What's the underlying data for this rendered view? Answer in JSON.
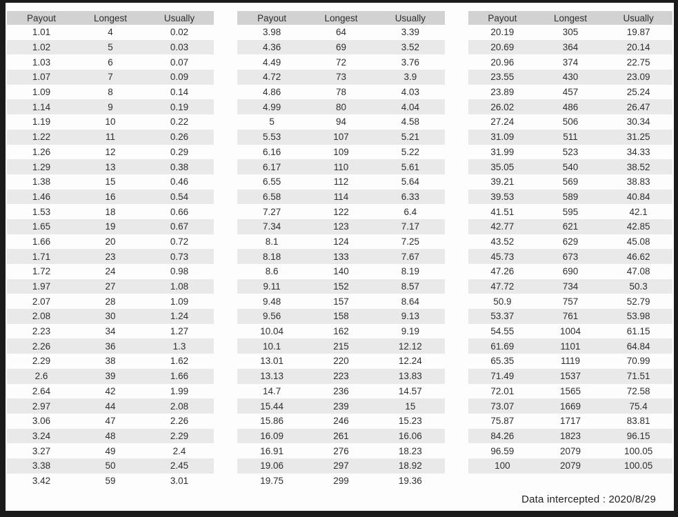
{
  "columns": [
    "Payout",
    "Longest",
    "Usually"
  ],
  "tables": [
    {
      "rows": [
        [
          "1.01",
          "4",
          "0.02"
        ],
        [
          "1.02",
          "5",
          "0.03"
        ],
        [
          "1.03",
          "6",
          "0.07"
        ],
        [
          "1.07",
          "7",
          "0.09"
        ],
        [
          "1.09",
          "8",
          "0.14"
        ],
        [
          "1.14",
          "9",
          "0.19"
        ],
        [
          "1.19",
          "10",
          "0.22"
        ],
        [
          "1.22",
          "11",
          "0.26"
        ],
        [
          "1.26",
          "12",
          "0.29"
        ],
        [
          "1.29",
          "13",
          "0.38"
        ],
        [
          "1.38",
          "15",
          "0.46"
        ],
        [
          "1.46",
          "16",
          "0.54"
        ],
        [
          "1.53",
          "18",
          "0.66"
        ],
        [
          "1.65",
          "19",
          "0.67"
        ],
        [
          "1.66",
          "20",
          "0.72"
        ],
        [
          "1.71",
          "23",
          "0.73"
        ],
        [
          "1.72",
          "24",
          "0.98"
        ],
        [
          "1.97",
          "27",
          "1.08"
        ],
        [
          "2.07",
          "28",
          "1.09"
        ],
        [
          "2.08",
          "30",
          "1.24"
        ],
        [
          "2.23",
          "34",
          "1.27"
        ],
        [
          "2.26",
          "36",
          "1.3"
        ],
        [
          "2.29",
          "38",
          "1.62"
        ],
        [
          "2.6",
          "39",
          "1.66"
        ],
        [
          "2.64",
          "42",
          "1.99"
        ],
        [
          "2.97",
          "44",
          "2.08"
        ],
        [
          "3.06",
          "47",
          "2.26"
        ],
        [
          "3.24",
          "48",
          "2.29"
        ],
        [
          "3.27",
          "49",
          "2.4"
        ],
        [
          "3.38",
          "50",
          "2.45"
        ],
        [
          "3.42",
          "59",
          "3.01"
        ]
      ]
    },
    {
      "rows": [
        [
          "3.98",
          "64",
          "3.39"
        ],
        [
          "4.36",
          "69",
          "3.52"
        ],
        [
          "4.49",
          "72",
          "3.76"
        ],
        [
          "4.72",
          "73",
          "3.9"
        ],
        [
          "4.86",
          "78",
          "4.03"
        ],
        [
          "4.99",
          "80",
          "4.04"
        ],
        [
          "5",
          "94",
          "4.58"
        ],
        [
          "5.53",
          "107",
          "5.21"
        ],
        [
          "6.16",
          "109",
          "5.22"
        ],
        [
          "6.17",
          "110",
          "5.61"
        ],
        [
          "6.55",
          "112",
          "5.64"
        ],
        [
          "6.58",
          "114",
          "6.33"
        ],
        [
          "7.27",
          "122",
          "6.4"
        ],
        [
          "7.34",
          "123",
          "7.17"
        ],
        [
          "8.1",
          "124",
          "7.25"
        ],
        [
          "8.18",
          "133",
          "7.67"
        ],
        [
          "8.6",
          "140",
          "8.19"
        ],
        [
          "9.11",
          "152",
          "8.57"
        ],
        [
          "9.48",
          "157",
          "8.64"
        ],
        [
          "9.56",
          "158",
          "9.13"
        ],
        [
          "10.04",
          "162",
          "9.19"
        ],
        [
          "10.1",
          "215",
          "12.12"
        ],
        [
          "13.01",
          "220",
          "12.24"
        ],
        [
          "13.13",
          "223",
          "13.83"
        ],
        [
          "14.7",
          "236",
          "14.57"
        ],
        [
          "15.44",
          "239",
          "15"
        ],
        [
          "15.86",
          "246",
          "15.23"
        ],
        [
          "16.09",
          "261",
          "16.06"
        ],
        [
          "16.91",
          "276",
          "18.23"
        ],
        [
          "19.06",
          "297",
          "18.92"
        ],
        [
          "19.75",
          "299",
          "19.36"
        ]
      ]
    },
    {
      "rows": [
        [
          "20.19",
          "305",
          "19.87"
        ],
        [
          "20.69",
          "364",
          "20.14"
        ],
        [
          "20.96",
          "374",
          "22.75"
        ],
        [
          "23.55",
          "430",
          "23.09"
        ],
        [
          "23.89",
          "457",
          "25.24"
        ],
        [
          "26.02",
          "486",
          "26.47"
        ],
        [
          "27.24",
          "506",
          "30.34"
        ],
        [
          "31.09",
          "511",
          "31.25"
        ],
        [
          "31.99",
          "523",
          "34.33"
        ],
        [
          "35.05",
          "540",
          "38.52"
        ],
        [
          "39.21",
          "569",
          "38.83"
        ],
        [
          "39.53",
          "589",
          "40.84"
        ],
        [
          "41.51",
          "595",
          "42.1"
        ],
        [
          "42.77",
          "621",
          "42.85"
        ],
        [
          "43.52",
          "629",
          "45.08"
        ],
        [
          "45.73",
          "673",
          "46.62"
        ],
        [
          "47.26",
          "690",
          "47.08"
        ],
        [
          "47.72",
          "734",
          "50.3"
        ],
        [
          "50.9",
          "757",
          "52.79"
        ],
        [
          "53.37",
          "761",
          "53.98"
        ],
        [
          "54.55",
          "1004",
          "61.15"
        ],
        [
          "61.69",
          "1101",
          "64.84"
        ],
        [
          "65.35",
          "1119",
          "70.99"
        ],
        [
          "71.49",
          "1537",
          "71.51"
        ],
        [
          "72.01",
          "1565",
          "72.58"
        ],
        [
          "73.07",
          "1669",
          "75.4"
        ],
        [
          "75.87",
          "1717",
          "83.81"
        ],
        [
          "84.26",
          "1823",
          "96.15"
        ],
        [
          "96.59",
          "2079",
          "100.05"
        ],
        [
          "100",
          "2079",
          "100.05"
        ]
      ]
    }
  ],
  "footer": {
    "note": "Data intercepted : 2020/8/29"
  },
  "colors": {
    "header_bg": "#d2d2d2",
    "stripe_bg": "#e9e9e9",
    "frame": "#1b1b1b",
    "text": "#2e2e2e"
  }
}
